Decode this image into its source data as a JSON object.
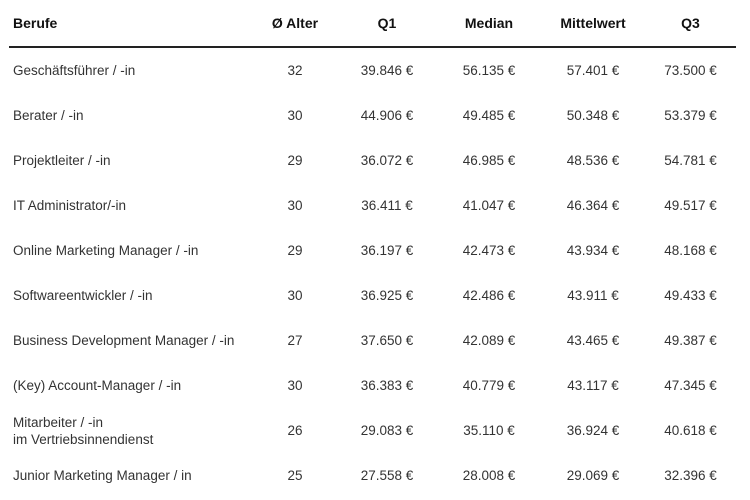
{
  "headers": {
    "beruf": "Berufe",
    "alter": "Ø Alter",
    "q1": "Q1",
    "median": "Median",
    "mittelwert": "Mittelwert",
    "q3": "Q3"
  },
  "rows": [
    {
      "beruf": "Geschäftsführer / -in",
      "beruf2": "",
      "alter": "32",
      "q1": "39.846 €",
      "median": "56.135 €",
      "mittelwert": "57.401 €",
      "q3": "73.500 €"
    },
    {
      "beruf": "Berater / -in",
      "beruf2": "",
      "alter": "30",
      "q1": "44.906 €",
      "median": "49.485 €",
      "mittelwert": "50.348 €",
      "q3": "53.379 €"
    },
    {
      "beruf": "Projektleiter / -in",
      "beruf2": "",
      "alter": "29",
      "q1": "36.072 €",
      "median": "46.985 €",
      "mittelwert": "48.536 €",
      "q3": "54.781 €"
    },
    {
      "beruf": "IT Administrator/-in",
      "beruf2": "",
      "alter": "30",
      "q1": "36.411 €",
      "median": "41.047 €",
      "mittelwert": "46.364 €",
      "q3": "49.517 €"
    },
    {
      "beruf": "Online Marketing Manager / -in",
      "beruf2": "",
      "alter": "29",
      "q1": "36.197 €",
      "median": "42.473 €",
      "mittelwert": "43.934 €",
      "q3": "48.168 €"
    },
    {
      "beruf": "Softwareentwickler / -in",
      "beruf2": "",
      "alter": "30",
      "q1": "36.925 €",
      "median": "42.486 €",
      "mittelwert": "43.911 €",
      "q3": "49.433 €"
    },
    {
      "beruf": "Business Development Manager / -in",
      "beruf2": "",
      "alter": "27",
      "q1": "37.650 €",
      "median": "42.089 €",
      "mittelwert": "43.465 €",
      "q3": "49.387 €"
    },
    {
      "beruf": "(Key) Account-Manager / -in",
      "beruf2": "",
      "alter": "30",
      "q1": "36.383 €",
      "median": "40.779 €",
      "mittelwert": "43.117 €",
      "q3": "47.345 €"
    },
    {
      "beruf": "Mitarbeiter / -in",
      "beruf2": "im Vertriebsinnendienst",
      "alter": "26",
      "q1": "29.083 €",
      "median": "35.110 €",
      "mittelwert": "36.924 €",
      "q3": "40.618 €"
    },
    {
      "beruf": "Junior Marketing Manager / in",
      "beruf2": "",
      "alter": "25",
      "q1": "27.558 €",
      "median": "28.008 €",
      "mittelwert": "29.069 €",
      "q3": "32.396 €"
    }
  ]
}
